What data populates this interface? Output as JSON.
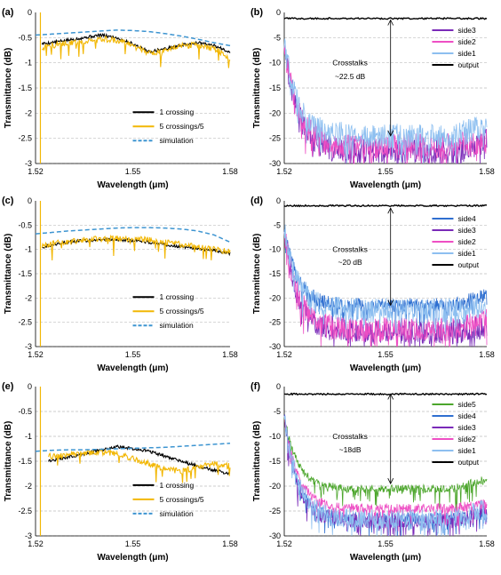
{
  "colors": {
    "black": "#000000",
    "gold": "#F2B705",
    "blue_dash": "#3E95D1",
    "side5": "#4CA62C",
    "side4": "#2F6FD0",
    "side3": "#7A2AB8",
    "side2": "#EE4FC4",
    "side1": "#8DBFF0",
    "output": "#000000",
    "grid": "#BFBFBF"
  },
  "chart_data": [
    {
      "panel_label": "(a)",
      "type": "line",
      "xlabel": "Wavelength (μm)",
      "ylabel": "Transmittance (dB)",
      "xlim": [
        1.52,
        1.58
      ],
      "ylim": [
        -3,
        0
      ],
      "xticks": [
        "1.52",
        "1.55",
        "1.58"
      ],
      "yticks": [
        "0",
        "-0.5",
        "-1",
        "-1.5",
        "-2",
        "-2.5",
        "-3"
      ],
      "legend_position": "bottom-right",
      "series": [
        {
          "name": "1 crossing",
          "color_key": "black",
          "style": "solid",
          "x": [
            1.522,
            1.525,
            1.53,
            1.535,
            1.54,
            1.545,
            1.55,
            1.555,
            1.56,
            1.565,
            1.57,
            1.575,
            1.58
          ],
          "y": [
            -0.62,
            -0.6,
            -0.55,
            -0.5,
            -0.45,
            -0.5,
            -0.62,
            -0.78,
            -0.72,
            -0.65,
            -0.6,
            -0.66,
            -0.78
          ]
        },
        {
          "name": "5 crossings/5",
          "color_key": "gold",
          "style": "solid",
          "x": [
            1.522,
            1.525,
            1.53,
            1.535,
            1.54,
            1.545,
            1.55,
            1.555,
            1.56,
            1.565,
            1.57,
            1.575,
            1.58
          ],
          "y": [
            -0.7,
            -0.66,
            -0.6,
            -0.58,
            -0.52,
            -0.55,
            -0.66,
            -0.82,
            -0.74,
            -0.66,
            -0.64,
            -0.72,
            -0.9
          ]
        },
        {
          "name": "simulation",
          "color_key": "blue_dash",
          "style": "dashed",
          "x": [
            1.52,
            1.525,
            1.53,
            1.535,
            1.54,
            1.545,
            1.55,
            1.555,
            1.56,
            1.565,
            1.57,
            1.575,
            1.58
          ],
          "y": [
            -0.45,
            -0.43,
            -0.41,
            -0.39,
            -0.37,
            -0.35,
            -0.36,
            -0.38,
            -0.42,
            -0.47,
            -0.53,
            -0.6,
            -0.66
          ]
        }
      ]
    },
    {
      "panel_label": "(b)",
      "type": "line",
      "xlabel": "Wavelength (μm)",
      "ylabel": "Transmittance (dB)",
      "xlim": [
        1.52,
        1.58
      ],
      "ylim": [
        -30,
        0
      ],
      "xticks": [
        "1.52",
        "1.55",
        "1.58"
      ],
      "yticks": [
        "0",
        "-5",
        "-10",
        "-15",
        "-20",
        "-25",
        "-30"
      ],
      "legend_position": "top-right",
      "annotation": {
        "line1": "Crosstalks",
        "line2": "~22.5 dB",
        "arrow_from": -1.5,
        "arrow_to": -24.5
      },
      "series": [
        {
          "name": "side3",
          "color_key": "side3",
          "level": -27.5,
          "noise": 2.5
        },
        {
          "name": "side2",
          "color_key": "side2",
          "level": -26.5,
          "noise": 2.5
        },
        {
          "name": "side1",
          "color_key": "side1",
          "level": -24.5,
          "noise": 2.5
        },
        {
          "name": "output",
          "color_key": "output",
          "level": -1.2,
          "noise": 0.3
        }
      ]
    },
    {
      "panel_label": "(c)",
      "type": "line",
      "xlabel": "Wavelength (μm)",
      "ylabel": "Transmittance (dB)",
      "xlim": [
        1.52,
        1.58
      ],
      "ylim": [
        -3,
        0
      ],
      "xticks": [
        "1.52",
        "1.55",
        "1.58"
      ],
      "yticks": [
        "0",
        "-0.5",
        "-1",
        "-1.5",
        "-2",
        "-2.5",
        "-3"
      ],
      "legend_position": "bottom-right",
      "series": [
        {
          "name": "1 crossing",
          "color_key": "black",
          "style": "solid",
          "x": [
            1.522,
            1.525,
            1.53,
            1.535,
            1.54,
            1.545,
            1.55,
            1.555,
            1.56,
            1.565,
            1.57,
            1.575,
            1.58
          ],
          "y": [
            -0.95,
            -0.9,
            -0.85,
            -0.82,
            -0.8,
            -0.8,
            -0.82,
            -0.85,
            -0.9,
            -0.95,
            -0.98,
            -1.02,
            -1.08
          ]
        },
        {
          "name": "5 crossings/5",
          "color_key": "gold",
          "style": "solid",
          "x": [
            1.522,
            1.525,
            1.53,
            1.535,
            1.54,
            1.545,
            1.55,
            1.555,
            1.56,
            1.565,
            1.57,
            1.575,
            1.58
          ],
          "y": [
            -0.95,
            -0.88,
            -0.84,
            -0.8,
            -0.78,
            -0.77,
            -0.78,
            -0.8,
            -0.85,
            -0.9,
            -0.95,
            -1.0,
            -1.05
          ]
        },
        {
          "name": "simulation",
          "color_key": "blue_dash",
          "style": "dashed",
          "x": [
            1.52,
            1.525,
            1.53,
            1.535,
            1.54,
            1.545,
            1.55,
            1.555,
            1.56,
            1.565,
            1.57,
            1.575,
            1.58
          ],
          "y": [
            -0.68,
            -0.65,
            -0.62,
            -0.6,
            -0.58,
            -0.56,
            -0.55,
            -0.55,
            -0.56,
            -0.58,
            -0.62,
            -0.7,
            -0.85
          ]
        }
      ]
    },
    {
      "panel_label": "(d)",
      "type": "line",
      "xlabel": "Wavelength (μm)",
      "ylabel": "Transmittance (dB)",
      "xlim": [
        1.52,
        1.58
      ],
      "ylim": [
        -30,
        0
      ],
      "xticks": [
        "1.52",
        "1.55",
        "1.58"
      ],
      "yticks": [
        "0",
        "-5",
        "-10",
        "-15",
        "-20",
        "-25",
        "-30"
      ],
      "legend_position": "top-right",
      "annotation": {
        "line1": "Crosstalks",
        "line2": "~20 dB",
        "arrow_from": -1.5,
        "arrow_to": -21.5
      },
      "series": [
        {
          "name": "side4",
          "color_key": "side4",
          "level": -21.5,
          "noise": 1.5
        },
        {
          "name": "side3",
          "color_key": "side3",
          "level": -27.0,
          "noise": 2.5
        },
        {
          "name": "side2",
          "color_key": "side2",
          "level": -26.5,
          "noise": 2.5
        },
        {
          "name": "side1",
          "color_key": "side1",
          "level": -22.5,
          "noise": 2.5
        },
        {
          "name": "output",
          "color_key": "output",
          "level": -1.0,
          "noise": 0.3
        }
      ]
    },
    {
      "panel_label": "(e)",
      "type": "line",
      "xlabel": "Wavelength (μm)",
      "ylabel": "Transmittance (dB)",
      "xlim": [
        1.52,
        1.58
      ],
      "ylim": [
        -3,
        0
      ],
      "xticks": [
        "1.52",
        "1.55",
        "1.58"
      ],
      "yticks": [
        "0",
        "-0.5",
        "-1",
        "-1.5",
        "-2",
        "-2.5",
        "-3"
      ],
      "legend_position": "bottom-right",
      "series": [
        {
          "name": "1 crossing",
          "color_key": "black",
          "style": "solid",
          "x": [
            1.524,
            1.53,
            1.535,
            1.54,
            1.545,
            1.55,
            1.555,
            1.56,
            1.565,
            1.57,
            1.575,
            1.58
          ],
          "y": [
            -1.5,
            -1.42,
            -1.35,
            -1.28,
            -1.2,
            -1.25,
            -1.3,
            -1.4,
            -1.5,
            -1.6,
            -1.68,
            -1.75
          ]
        },
        {
          "name": "5 crossings/5",
          "color_key": "gold",
          "style": "solid",
          "x": [
            1.524,
            1.53,
            1.535,
            1.54,
            1.545,
            1.55,
            1.555,
            1.56,
            1.565,
            1.57,
            1.575,
            1.58
          ],
          "y": [
            -1.4,
            -1.38,
            -1.33,
            -1.32,
            -1.35,
            -1.45,
            -1.55,
            -1.65,
            -1.7,
            -1.62,
            -1.55,
            -1.6
          ]
        },
        {
          "name": "simulation",
          "color_key": "blue_dash",
          "style": "dashed",
          "x": [
            1.52,
            1.525,
            1.53,
            1.535,
            1.54,
            1.545,
            1.55,
            1.555,
            1.56,
            1.565,
            1.57,
            1.575,
            1.58
          ],
          "y": [
            -1.3,
            -1.28,
            -1.27,
            -1.27,
            -1.26,
            -1.25,
            -1.24,
            -1.23,
            -1.22,
            -1.2,
            -1.18,
            -1.16,
            -1.14
          ]
        }
      ]
    },
    {
      "panel_label": "(f)",
      "type": "line",
      "xlabel": "Wavelength (μm)",
      "ylabel": "Transmittance (dB)",
      "xlim": [
        1.52,
        1.58
      ],
      "ylim": [
        -30,
        0
      ],
      "xticks": [
        "1.52",
        "1.55",
        "1.58"
      ],
      "yticks": [
        "0",
        "-5",
        "-10",
        "-15",
        "-20",
        "-25",
        "-30"
      ],
      "legend_position": "top-right",
      "annotation": {
        "line1": "Crosstalks",
        "line2": "~18dB",
        "arrow_from": -1.5,
        "arrow_to": -19.5
      },
      "series": [
        {
          "name": "side5",
          "color_key": "side5",
          "level": -20.5,
          "noise": 0.8
        },
        {
          "name": "side4",
          "color_key": "side4",
          "level": -26.5,
          "noise": 1.2
        },
        {
          "name": "side3",
          "color_key": "side3",
          "level": -27.0,
          "noise": 1.5
        },
        {
          "name": "side2",
          "color_key": "side2",
          "level": -24.5,
          "noise": 1.0
        },
        {
          "name": "side1",
          "color_key": "side1",
          "level": -26.5,
          "noise": 2.0
        },
        {
          "name": "output",
          "color_key": "output",
          "level": -1.5,
          "noise": 0.3
        }
      ]
    }
  ]
}
